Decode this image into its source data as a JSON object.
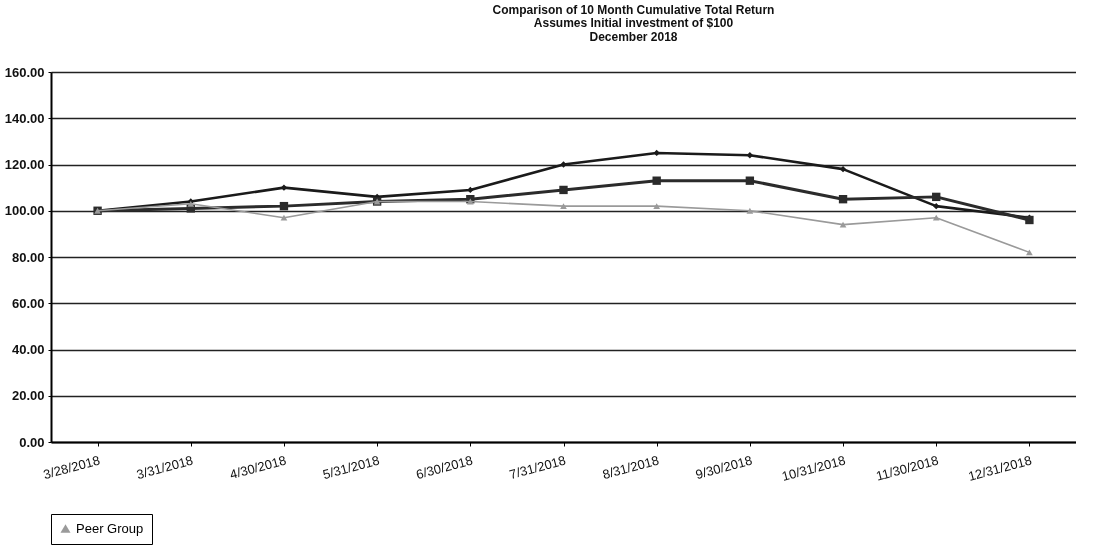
{
  "chart_data": {
    "type": "line",
    "title": "Comparison of 10 Month Cumulative Total Return",
    "subtitle": "Assumes Initial investment of $100\nDecember 2018",
    "categories": [
      "3/28/2018",
      "3/31/2018",
      "4/30/2018",
      "5/31/2018",
      "6/30/2018",
      "7/31/2018",
      "8/31/2018",
      "9/30/2018",
      "10/31/2018",
      "11/30/2018",
      "12/31/2018"
    ],
    "series": [
      {
        "color": "#1a1a1a",
        "marker": "diamond",
        "values": [
          100,
          104,
          110,
          106,
          109,
          120,
          125,
          124,
          118,
          102,
          97
        ]
      },
      {
        "color": "#2b2b2b",
        "marker": "square",
        "values": [
          100,
          101,
          102,
          104,
          105,
          109,
          113,
          113,
          105,
          106,
          96
        ]
      },
      {
        "name": "Peer Group",
        "color": "#9a9a9a",
        "marker": "triangle",
        "values": [
          100,
          103,
          97,
          104,
          104,
          102,
          102,
          100,
          94,
          97,
          82
        ]
      }
    ],
    "ylim": [
      0,
      160
    ],
    "yticks": [
      {
        "value": 0,
        "label": "0.00"
      },
      {
        "value": 20,
        "label": "20.00"
      },
      {
        "value": 40,
        "label": "40.00"
      },
      {
        "value": 60,
        "label": "60.00"
      },
      {
        "value": 80,
        "label": "80.00"
      },
      {
        "value": 100,
        "label": "100.00"
      },
      {
        "value": 120,
        "label": "120.00"
      },
      {
        "value": 140,
        "label": "140.00"
      },
      {
        "value": 160,
        "label": "160.00"
      }
    ],
    "grid": "y",
    "legend": "bottom",
    "line_style": "solid"
  }
}
